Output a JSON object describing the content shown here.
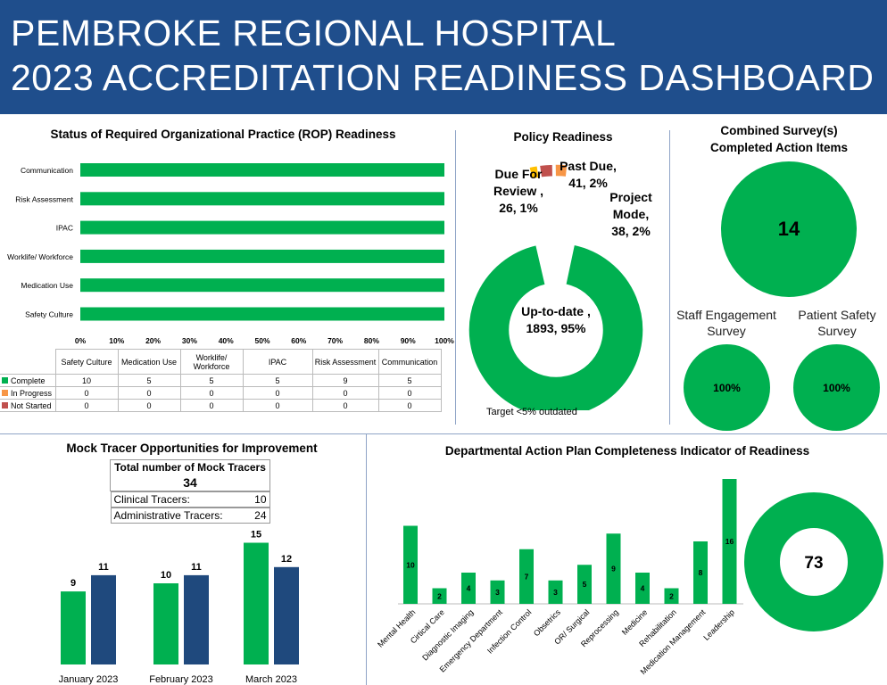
{
  "header": {
    "line1": "PEMBROKE REGIONAL HOSPITAL",
    "line2": "2023 ACCREDITATION READINESS DASHBOARD"
  },
  "colors": {
    "header": "#1F4E8C",
    "green": "#00B050",
    "navy": "#1F497D",
    "orange": "#F79646",
    "red": "#C0504D",
    "yellow": "#FFC000"
  },
  "rop": {
    "title": "Status of Required Organizational Practice (ROP) Readiness",
    "chart_data": {
      "type": "bar",
      "orientation": "horizontal",
      "stacked": "100%",
      "categories": [
        "Communication",
        "Risk Assessment",
        "IPAC",
        "Worklife/ Workforce",
        "Medication Use",
        "Safety Culture"
      ],
      "xticks": [
        "0%",
        "10%",
        "20%",
        "30%",
        "40%",
        "50%",
        "60%",
        "70%",
        "80%",
        "90%",
        "100%"
      ],
      "xlim": [
        0,
        100
      ],
      "percent_complete": [
        100,
        100,
        100,
        100,
        100,
        100
      ]
    },
    "table": {
      "columns": [
        "Safety Culture",
        "Medication Use",
        "Worklife/ Workforce",
        "IPAC",
        "Risk Assessment",
        "Communication"
      ],
      "rows": [
        {
          "label": "Complete",
          "values": [
            "10",
            "5",
            "5",
            "5",
            "9",
            "5"
          ]
        },
        {
          "label": "In Progress",
          "values": [
            "0",
            "0",
            "0",
            "0",
            "0",
            "0"
          ]
        },
        {
          "label": "Not Started",
          "values": [
            "0",
            "0",
            "0",
            "0",
            "0",
            "0"
          ]
        }
      ]
    }
  },
  "policy": {
    "title": "Policy Readiness",
    "note": "Target <5% outdated",
    "chart_data": {
      "type": "pie",
      "donut": true,
      "slices": [
        {
          "name": "Up-to-date",
          "value": 1893,
          "percent": "95%",
          "label": "Up-to-date , 1893, 95%"
        },
        {
          "name": "Due For Review",
          "value": 26,
          "percent": "1%",
          "label": "Due For Review , 26, 1%"
        },
        {
          "name": "Past Due",
          "value": 41,
          "percent": "2%",
          "label": "Past Due, 41, 2%"
        },
        {
          "name": "Project Mode",
          "value": 38,
          "percent": "2%",
          "label": "Project Mode, 38, 2%"
        }
      ]
    }
  },
  "survey": {
    "title1": "Combined Survey(s)",
    "title2": "Completed Action Items",
    "count": "14",
    "staff": {
      "label1": "Staff Engagement",
      "label2": "Survey",
      "value": "100%"
    },
    "patient": {
      "label1": "Patient Safety",
      "label2": "Survey",
      "value": "100%"
    }
  },
  "mock": {
    "title": "Mock Tracer Opportunities for Improvement",
    "table": {
      "header": "Total number of Mock Tracers",
      "total": "34",
      "rows": [
        {
          "label": "Clinical Tracers:",
          "value": "10"
        },
        {
          "label": "Administrative Tracers:",
          "value": "24"
        }
      ]
    },
    "chart_data": {
      "type": "bar",
      "categories": [
        "January 2023",
        "February 2023",
        "March 2023"
      ],
      "series": [
        {
          "values": [
            9,
            10,
            15
          ]
        },
        {
          "values": [
            11,
            11,
            12
          ]
        }
      ]
    }
  },
  "dept": {
    "title": "Departmental Action Plan Completeness Indicator of Readiness",
    "total": "73",
    "chart_data": {
      "type": "bar",
      "categories": [
        "Mental Health",
        "Cirtical Care",
        "Diagnostic Imaging",
        "Emergency Department",
        "Infection Control",
        "Obsetrics",
        "OR/ Surgical",
        "Reprocessing",
        "Medicine",
        "Rehabilitation",
        "Medication Management",
        "Leadership"
      ],
      "values": [
        10,
        2,
        4,
        3,
        7,
        3,
        5,
        9,
        4,
        2,
        8,
        16
      ]
    }
  }
}
